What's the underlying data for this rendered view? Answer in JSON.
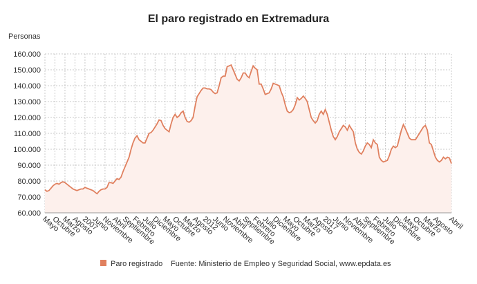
{
  "chart_data": {
    "type": "area-line",
    "title": "El paro registrado en Extremadura",
    "y_label": "Personas",
    "source": "Fuente: Ministerio de Empleo y Seguridad Social, www.epdata.es",
    "ylim": [
      60000,
      160000
    ],
    "yticks": [
      {
        "value": 60000,
        "label": "60.000"
      },
      {
        "value": 70000,
        "label": "70.000"
      },
      {
        "value": 80000,
        "label": "80.000"
      },
      {
        "value": 90000,
        "label": "90.000"
      },
      {
        "value": 100000,
        "label": "100.000"
      },
      {
        "value": 110000,
        "label": "110.000"
      },
      {
        "value": 120000,
        "label": "120.000"
      },
      {
        "value": 130000,
        "label": "130.000"
      },
      {
        "value": 140000,
        "label": "140.000"
      },
      {
        "value": 150000,
        "label": "150.000"
      },
      {
        "value": 160000,
        "label": "160.000"
      }
    ],
    "grid": true,
    "categories": [
      "Mayo",
      null,
      null,
      null,
      null,
      "Octubre",
      null,
      null,
      null,
      null,
      "Marzo",
      null,
      null,
      null,
      null,
      "Agosto",
      null,
      null,
      null,
      null,
      "2007",
      null,
      null,
      null,
      null,
      "Junio",
      null,
      null,
      null,
      null,
      "Noviembre",
      null,
      null,
      null,
      null,
      "Abril",
      null,
      null,
      null,
      null,
      "Septiembre",
      null,
      null,
      null,
      null,
      "Febrero",
      null,
      null,
      null,
      null,
      "Julio",
      null,
      null,
      null,
      null,
      "Diciembre",
      null,
      null,
      null,
      null,
      "Mayo",
      null,
      null,
      null,
      null,
      "Octubre",
      null,
      null,
      null,
      null,
      "Marzo",
      null,
      null,
      null,
      null,
      "Agosto",
      null,
      null,
      null,
      null,
      "2012",
      null,
      null,
      null,
      null,
      "Junio",
      null,
      null,
      null,
      null,
      "Noviembre",
      null,
      null,
      null,
      null,
      "Abril",
      null,
      null,
      null,
      null,
      "Septiembre",
      null,
      null,
      null,
      null,
      "Febrero",
      null,
      null,
      null,
      null,
      "Julio",
      null,
      null,
      null,
      null,
      "Diciembre",
      null,
      null,
      null,
      null,
      "Mayo",
      null,
      null,
      null,
      null,
      "Octubre",
      null,
      null,
      null,
      null,
      "Marzo",
      null,
      null,
      null,
      null,
      "Agosto",
      null,
      null,
      null,
      null,
      "2017",
      null,
      null,
      null,
      null,
      "Junio",
      null,
      null,
      null,
      null,
      "Noviembre",
      null,
      null,
      null,
      null,
      "Abril",
      null,
      null,
      null,
      null,
      "Septiembre",
      null,
      null,
      null,
      null,
      "Febrero",
      null,
      null,
      null,
      null,
      "Julio",
      null,
      null,
      null,
      null,
      "Diciembre",
      null,
      null,
      null,
      null,
      "Mayo",
      null,
      null,
      null,
      null,
      "Octubre",
      null,
      null,
      null,
      null,
      "Marzo",
      null,
      null,
      null,
      null,
      "Agosto",
      null,
      null,
      null,
      null,
      null,
      null,
      null,
      "Abril"
    ],
    "series": [
      {
        "name": "Paro registrado",
        "color": "#e0805f",
        "fill": "#fdf0ec",
        "values": [
          74500,
          73500,
          74000,
          75500,
          77000,
          78000,
          78500,
          78000,
          79000,
          79500,
          79000,
          78000,
          77000,
          76000,
          75000,
          74500,
          74000,
          74500,
          75000,
          75000,
          76000,
          75500,
          75000,
          74500,
          74000,
          73000,
          72000,
          73500,
          74500,
          75000,
          75000,
          76000,
          79000,
          79000,
          78500,
          80000,
          81500,
          81000,
          82500,
          86000,
          89000,
          92000,
          95000,
          100000,
          104000,
          107000,
          108500,
          106000,
          105000,
          104000,
          104000,
          107000,
          110000,
          110500,
          112000,
          114000,
          116000,
          118500,
          118000,
          115000,
          113000,
          112000,
          111000,
          116000,
          120000,
          122000,
          120000,
          121000,
          123000,
          124000,
          120000,
          117500,
          117000,
          118000,
          120000,
          127000,
          133000,
          135000,
          137000,
          138500,
          138500,
          138000,
          138000,
          137500,
          136000,
          135000,
          135500,
          140000,
          145000,
          146000,
          146000,
          152000,
          152500,
          153000,
          150000,
          147000,
          144000,
          143000,
          145000,
          148000,
          148000,
          146000,
          145000,
          149000,
          152500,
          151000,
          150000,
          141000,
          141000,
          138000,
          134500,
          135000,
          135500,
          138000,
          141500,
          141000,
          140500,
          140000,
          136000,
          133000,
          128000,
          124000,
          123000,
          123500,
          125000,
          128000,
          132500,
          131000,
          132000,
          133500,
          132000,
          130000,
          125000,
          120000,
          118000,
          116500,
          118000,
          122000,
          124000,
          122000,
          125000,
          122000,
          117000,
          112000,
          108000,
          106000,
          108000,
          111000,
          113000,
          115000,
          114000,
          112000,
          115000,
          113000,
          111000,
          104000,
          100000,
          98000,
          97000,
          99000,
          102000,
          104000,
          103000,
          101000,
          106000,
          104000,
          103000,
          95000,
          93000,
          92000,
          92500,
          93000,
          96000,
          100000,
          102000,
          101000,
          102000,
          107000,
          112000,
          115500,
          113000,
          110000,
          107000,
          106000,
          106000,
          106000,
          108000,
          110000,
          112000,
          114000,
          115000,
          112000,
          104000,
          103000,
          99000,
          95000,
          93000,
          92000,
          93000,
          95000,
          94000,
          95000,
          94500,
          91000
        ]
      }
    ]
  }
}
